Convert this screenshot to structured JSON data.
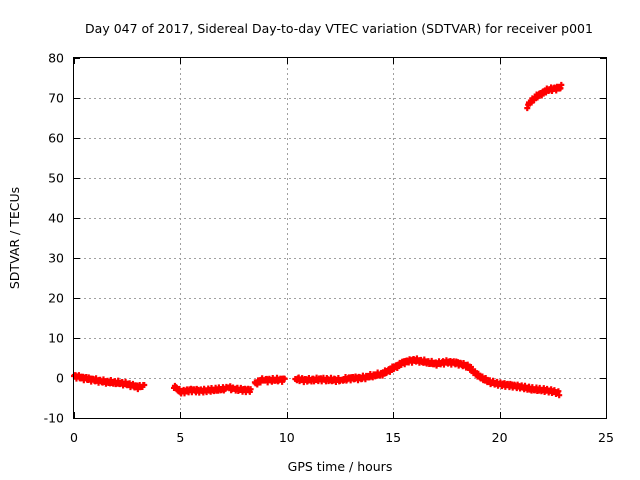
{
  "chart_data": {
    "type": "scatter",
    "title": "Day 047 of 2017, Sidereal Day-to-day VTEC variation (SDTVAR) for receiver p001",
    "xlabel": "GPS time / hours",
    "ylabel": "SDTVAR / TECUs",
    "xlim": [
      0,
      25
    ],
    "ylim": [
      -10,
      80
    ],
    "xticks": [
      0,
      5,
      10,
      15,
      20,
      25
    ],
    "yticks": [
      -10,
      0,
      10,
      20,
      30,
      40,
      50,
      60,
      70,
      80
    ],
    "xtick_labels": [
      "0",
      "5",
      "10",
      "15",
      "20",
      "25"
    ],
    "ytick_labels": [
      "-10",
      "0",
      "10",
      "20",
      "30",
      "40",
      "50",
      "60",
      "70",
      "80"
    ],
    "grid": true,
    "series": [
      {
        "name": "SDTVAR",
        "color": "#ff0000",
        "marker": "plus",
        "segments": [
          {
            "x": [
              0.0,
              0.5,
              1.0,
              1.5,
              2.0,
              2.5,
              3.0,
              3.3
            ],
            "y": [
              0.5,
              0.0,
              -0.5,
              -1.0,
              -1.2,
              -1.5,
              -2.2,
              -2.0
            ]
          },
          {
            "x": [
              4.7,
              5.0,
              5.5,
              6.0,
              6.5,
              7.0,
              7.2
            ],
            "y": [
              -2.0,
              -3.5,
              -3.0,
              -3.2,
              -3.0,
              -2.8,
              -2.5
            ]
          },
          {
            "x": [
              7.3,
              7.6,
              8.0,
              8.3
            ],
            "y": [
              -2.5,
              -2.8,
              -3.0,
              -3.0
            ]
          },
          {
            "x": [
              8.5,
              8.8,
              9.1,
              9.5,
              9.9
            ],
            "y": [
              -1.5,
              -0.5,
              -0.5,
              -0.5,
              -0.3
            ]
          },
          {
            "x": [
              10.4,
              10.8,
              11.2,
              11.6,
              12.0,
              12.5
            ],
            "y": [
              -0.2,
              -0.5,
              -0.5,
              -0.3,
              -0.5,
              -0.5
            ]
          },
          {
            "x": [
              12.6,
              13.0,
              13.5,
              14.0,
              14.5,
              15.0,
              15.5,
              16.0,
              16.5,
              17.0,
              17.5,
              18.0,
              18.5,
              19.0,
              19.5,
              20.0,
              20.5,
              21.0,
              21.5,
              22.0,
              22.5,
              22.8
            ],
            "y": [
              -0.5,
              0.0,
              0.0,
              0.5,
              1.0,
              2.5,
              4.0,
              4.5,
              4.0,
              3.5,
              4.0,
              3.8,
              3.0,
              0.5,
              -1.0,
              -1.5,
              -1.8,
              -2.2,
              -2.8,
              -3.0,
              -3.3,
              -3.8
            ]
          },
          {
            "x": [
              21.3,
              21.5,
              21.7,
              21.9,
              22.1,
              22.3,
              22.5,
              22.7,
              22.9
            ],
            "y": [
              68.0,
              69.2,
              70.2,
              71.0,
              71.5,
              72.0,
              72.3,
              72.5,
              72.7
            ]
          }
        ]
      }
    ]
  }
}
